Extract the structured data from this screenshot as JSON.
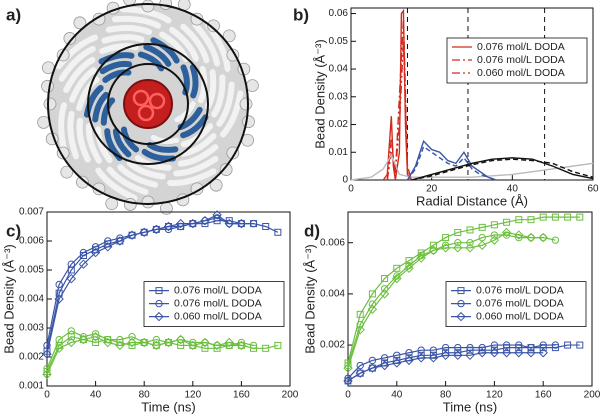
{
  "image_panel": {
    "label": "a)"
  },
  "chart_data": [
    {
      "type": "line",
      "label": "b)",
      "xlabel": "Radial Distance (Å)",
      "ylabel": "Bead Density (Å⁻³)",
      "xlim": [
        0,
        60
      ],
      "xticks": [
        0,
        20,
        40,
        60
      ],
      "ylim": [
        0,
        0.062
      ],
      "yticks": [
        0,
        0.01,
        0.02,
        0.03,
        0.04,
        0.05,
        0.06
      ],
      "vlines": [
        14,
        29,
        48
      ],
      "legend": "upper right",
      "series": [
        {
          "name": "0.076 mol/L DODA",
          "color": "#d42a1e",
          "dash": "solid",
          "x": [
            8,
            9,
            10,
            10.5,
            11,
            12,
            12.5,
            13,
            13.5,
            14,
            15
          ],
          "values": [
            0,
            0.002,
            0.023,
            0.005,
            0,
            0.01,
            0.06,
            0.061,
            0.02,
            0.002,
            0
          ]
        },
        {
          "name": "0.076 mol/L DODA",
          "color": "#d42a1e",
          "dash": "dashdot",
          "x": [
            9,
            10,
            11,
            12,
            13,
            14,
            15
          ],
          "values": [
            0,
            0.015,
            0.002,
            0.03,
            0.058,
            0.005,
            0
          ]
        },
        {
          "name": "0.060 mol/L DODA",
          "color": "#d42a1e",
          "dash": "dashdotdot",
          "x": [
            9,
            10,
            11,
            12,
            13,
            14,
            15
          ],
          "values": [
            0,
            0.01,
            0.003,
            0.02,
            0.05,
            0.004,
            0
          ]
        },
        {
          "color": "#bbbbbb",
          "dash": "solid",
          "x": [
            0,
            5,
            8,
            10,
            12,
            15,
            20,
            30,
            40,
            50,
            55,
            60
          ],
          "values": [
            0,
            0.001,
            0.004,
            0.009,
            0.002,
            0.001,
            0.001,
            0.001,
            0.002,
            0.004,
            0.005,
            0.006
          ]
        },
        {
          "color": "#3a55a8",
          "dash": "solid",
          "x": [
            14,
            16,
            18,
            20,
            22,
            24,
            26,
            28,
            30,
            32,
            34,
            36
          ],
          "values": [
            0,
            0.005,
            0.014,
            0.011,
            0.01,
            0.007,
            0.006,
            0.01,
            0.005,
            0.003,
            0.001,
            0
          ]
        },
        {
          "color": "#3a55a8",
          "dash": "dash",
          "x": [
            14,
            16,
            18,
            20,
            22,
            24,
            26,
            28,
            30,
            32,
            34,
            36
          ],
          "values": [
            0,
            0.004,
            0.012,
            0.01,
            0.008,
            0.006,
            0.005,
            0.008,
            0.004,
            0.002,
            0.001,
            0
          ]
        },
        {
          "color": "#111111",
          "dash": "solid",
          "x": [
            15,
            20,
            25,
            30,
            35,
            40,
            45,
            50,
            55,
            60
          ],
          "values": [
            0,
            0.002,
            0.004,
            0.006,
            0.0075,
            0.008,
            0.0075,
            0.005,
            0.002,
            0.0005
          ]
        },
        {
          "color": "#111111",
          "dash": "dash",
          "x": [
            15,
            20,
            25,
            30,
            35,
            40,
            45,
            50,
            55,
            60
          ],
          "values": [
            0,
            0.0015,
            0.0035,
            0.0055,
            0.007,
            0.0075,
            0.007,
            0.006,
            0.003,
            0.001
          ]
        }
      ]
    },
    {
      "type": "line",
      "label": "c)",
      "xlabel": "Time (ns)",
      "ylabel": "Bead Density (Å⁻³)",
      "xlim": [
        0,
        200
      ],
      "xticks": [
        0,
        40,
        80,
        120,
        160,
        200
      ],
      "ylim": [
        0.001,
        0.007
      ],
      "yticks": [
        0.001,
        0.002,
        0.003,
        0.004,
        0.005,
        0.006,
        0.007
      ],
      "legend": "center right",
      "series": [
        {
          "name": "0.076 mol/L DODA",
          "color": "#3a55a8",
          "marker": "square",
          "x": [
            0,
            10,
            20,
            30,
            40,
            50,
            60,
            70,
            80,
            90,
            100,
            110,
            120,
            130,
            140,
            150,
            160,
            170,
            180,
            190
          ],
          "values": [
            0.0022,
            0.0042,
            0.005,
            0.0055,
            0.0057,
            0.0059,
            0.006,
            0.0062,
            0.0063,
            0.0064,
            0.0065,
            0.0065,
            0.0066,
            0.0066,
            0.0067,
            0.0067,
            0.0066,
            0.0066,
            0.0065,
            0.0063
          ]
        },
        {
          "name": "0.076 mol/L DODA",
          "color": "#3a55a8",
          "marker": "circle",
          "x": [
            0,
            10,
            20,
            30,
            40,
            50,
            60,
            70,
            80,
            90,
            100,
            110,
            120,
            130,
            140,
            150,
            160,
            170
          ],
          "values": [
            0.0024,
            0.0045,
            0.0052,
            0.0056,
            0.0058,
            0.006,
            0.0061,
            0.0062,
            0.0063,
            0.0064,
            0.0064,
            0.0065,
            0.0066,
            0.0067,
            0.0068,
            0.0066,
            0.0066,
            0.0066
          ]
        },
        {
          "name": "0.060 mol/L DODA",
          "color": "#3a55a8",
          "marker": "diamond",
          "x": [
            0,
            10,
            20,
            30,
            40,
            50,
            60,
            70,
            80,
            90,
            100,
            110,
            120,
            130,
            140,
            150,
            160
          ],
          "values": [
            0.0021,
            0.004,
            0.0047,
            0.0052,
            0.0056,
            0.0058,
            0.006,
            0.0062,
            0.0063,
            0.0064,
            0.0065,
            0.0066,
            0.0066,
            0.0067,
            0.0069,
            0.0066,
            0.0066
          ]
        },
        {
          "color": "#6cbf3f",
          "marker": "square",
          "x": [
            0,
            10,
            20,
            30,
            40,
            50,
            60,
            70,
            80,
            90,
            100,
            110,
            120,
            130,
            140,
            150,
            160,
            170,
            180,
            190
          ],
          "values": [
            0.0015,
            0.0024,
            0.0027,
            0.0026,
            0.0025,
            0.0026,
            0.0025,
            0.0024,
            0.0025,
            0.0024,
            0.0025,
            0.0024,
            0.0024,
            0.0023,
            0.0023,
            0.0024,
            0.0024,
            0.0023,
            0.0023,
            0.0024
          ]
        },
        {
          "color": "#6cbf3f",
          "marker": "circle",
          "x": [
            0,
            10,
            20,
            30,
            40,
            50,
            60,
            70,
            80,
            90,
            100,
            110,
            120,
            130,
            140,
            150,
            160,
            170
          ],
          "values": [
            0.0016,
            0.0026,
            0.0029,
            0.0027,
            0.0028,
            0.0026,
            0.0026,
            0.0027,
            0.0025,
            0.0026,
            0.0025,
            0.0026,
            0.0025,
            0.0025,
            0.0024,
            0.0024,
            0.0025,
            0.0024
          ]
        },
        {
          "color": "#6cbf3f",
          "marker": "diamond",
          "x": [
            0,
            10,
            20,
            30,
            40,
            50,
            60,
            70,
            80,
            90,
            100,
            110,
            120,
            130,
            140,
            150,
            160
          ],
          "values": [
            0.0014,
            0.0023,
            0.0025,
            0.0026,
            0.0027,
            0.0025,
            0.0024,
            0.0025,
            0.0025,
            0.0024,
            0.0025,
            0.0026,
            0.0024,
            0.0025,
            0.0024,
            0.0025,
            0.0024
          ]
        }
      ]
    },
    {
      "type": "line",
      "label": "d)",
      "xlabel": "Time (ns)",
      "ylabel": "Bead Density (Å⁻³)",
      "xlim": [
        0,
        200
      ],
      "xticks": [
        0,
        40,
        80,
        120,
        160,
        200
      ],
      "ylim": [
        0.0004,
        0.0072
      ],
      "yticks": [
        0.002,
        0.004,
        0.006
      ],
      "legend": "center right",
      "series": [
        {
          "name": "0.076 mol/L DODA",
          "color": "#3a55a8",
          "marker": "square",
          "x": [
            0,
            10,
            20,
            30,
            40,
            50,
            60,
            70,
            80,
            90,
            100,
            110,
            120,
            130,
            140,
            150,
            160,
            170,
            180,
            190
          ],
          "values": [
            0.0006,
            0.0009,
            0.0011,
            0.0013,
            0.0014,
            0.0015,
            0.0016,
            0.0016,
            0.0017,
            0.0017,
            0.0018,
            0.0018,
            0.0018,
            0.0019,
            0.0019,
            0.0019,
            0.0019,
            0.0019,
            0.002,
            0.002
          ]
        },
        {
          "name": "0.076 mol/L DODA",
          "color": "#3a55a8",
          "marker": "circle",
          "x": [
            0,
            10,
            20,
            30,
            40,
            50,
            60,
            70,
            80,
            90,
            100,
            110,
            120,
            130,
            140,
            150,
            160,
            170
          ],
          "values": [
            0.0007,
            0.0012,
            0.0014,
            0.0015,
            0.0016,
            0.0017,
            0.0018,
            0.0018,
            0.0019,
            0.0019,
            0.0019,
            0.0019,
            0.002,
            0.002,
            0.002,
            0.0019,
            0.002,
            0.002
          ]
        },
        {
          "name": "0.060 mol/L DODA",
          "color": "#3a55a8",
          "marker": "diamond",
          "x": [
            0,
            10,
            20,
            30,
            40,
            50,
            60,
            70,
            80,
            90,
            100,
            110,
            120,
            130,
            140,
            150,
            160
          ],
          "values": [
            0.0006,
            0.0009,
            0.0011,
            0.0012,
            0.0013,
            0.0014,
            0.0015,
            0.0015,
            0.0016,
            0.0016,
            0.0016,
            0.0017,
            0.0017,
            0.0017,
            0.0017,
            0.0017,
            0.0017
          ]
        },
        {
          "color": "#6cbf3f",
          "marker": "square",
          "x": [
            0,
            10,
            20,
            30,
            40,
            50,
            60,
            70,
            80,
            90,
            100,
            110,
            120,
            130,
            140,
            150,
            160,
            170,
            180,
            190
          ],
          "values": [
            0.0013,
            0.0032,
            0.004,
            0.0046,
            0.005,
            0.0053,
            0.0056,
            0.0059,
            0.0062,
            0.0064,
            0.0065,
            0.0066,
            0.0067,
            0.0068,
            0.0069,
            0.0069,
            0.007,
            0.007,
            0.007,
            0.007
          ]
        },
        {
          "color": "#6cbf3f",
          "marker": "circle",
          "x": [
            0,
            10,
            20,
            30,
            40,
            50,
            60,
            70,
            80,
            90,
            100,
            110,
            120,
            130,
            140,
            150,
            160,
            170
          ],
          "values": [
            0.0012,
            0.0028,
            0.0036,
            0.0042,
            0.0047,
            0.0051,
            0.0055,
            0.0057,
            0.0059,
            0.006,
            0.006,
            0.0062,
            0.0063,
            0.0063,
            0.0062,
            0.0062,
            0.0062,
            0.0061
          ]
        },
        {
          "color": "#6cbf3f",
          "marker": "diamond",
          "x": [
            0,
            10,
            20,
            30,
            40,
            50,
            60,
            70,
            80,
            90,
            100,
            110,
            120,
            130,
            140,
            150,
            160
          ],
          "values": [
            0.0011,
            0.0026,
            0.0034,
            0.004,
            0.0046,
            0.005,
            0.0054,
            0.0057,
            0.0058,
            0.0058,
            0.0058,
            0.0059,
            0.0061,
            0.0064,
            0.0063,
            0.0062,
            0.0062
          ]
        }
      ]
    }
  ]
}
